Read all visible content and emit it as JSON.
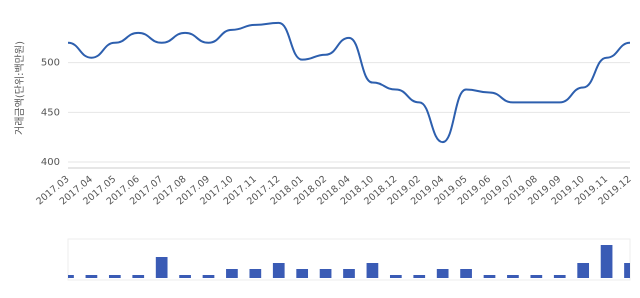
{
  "chart_data": [
    {
      "type": "line",
      "y_label": "거래금액(단위:백만원)",
      "categories": [
        "2017.03",
        "2017.04",
        "2017.05",
        "2017.06",
        "2017.07",
        "2017.08",
        "2017.09",
        "2017.10",
        "2017.11",
        "2017.12",
        "2018.01",
        "2018.02",
        "2018.04",
        "2018.10",
        "2018.12",
        "2019.02",
        "2019.04",
        "2019.05",
        "2019.06",
        "2019.07",
        "2019.08",
        "2019.09",
        "2019.10",
        "2019.11",
        "2019.12"
      ],
      "values": [
        520,
        505,
        520,
        530,
        520,
        530,
        520,
        533,
        538,
        540,
        503,
        508,
        525,
        480,
        473,
        460,
        420,
        473,
        470,
        460,
        460,
        460,
        475,
        505,
        520
      ],
      "color": "#2d5fae",
      "ylim": [
        394,
        555
      ],
      "yticks": [
        400,
        450,
        500
      ],
      "grid": true
    },
    {
      "type": "bar",
      "values": [
        1,
        1,
        1,
        1,
        4,
        1,
        1,
        2,
        2,
        3,
        2,
        2,
        2,
        3,
        1,
        1,
        2,
        2,
        1,
        1,
        1,
        1,
        3,
        6,
        3
      ],
      "color": "#3a5bb5",
      "ylim": [
        0.5,
        7
      ]
    }
  ]
}
